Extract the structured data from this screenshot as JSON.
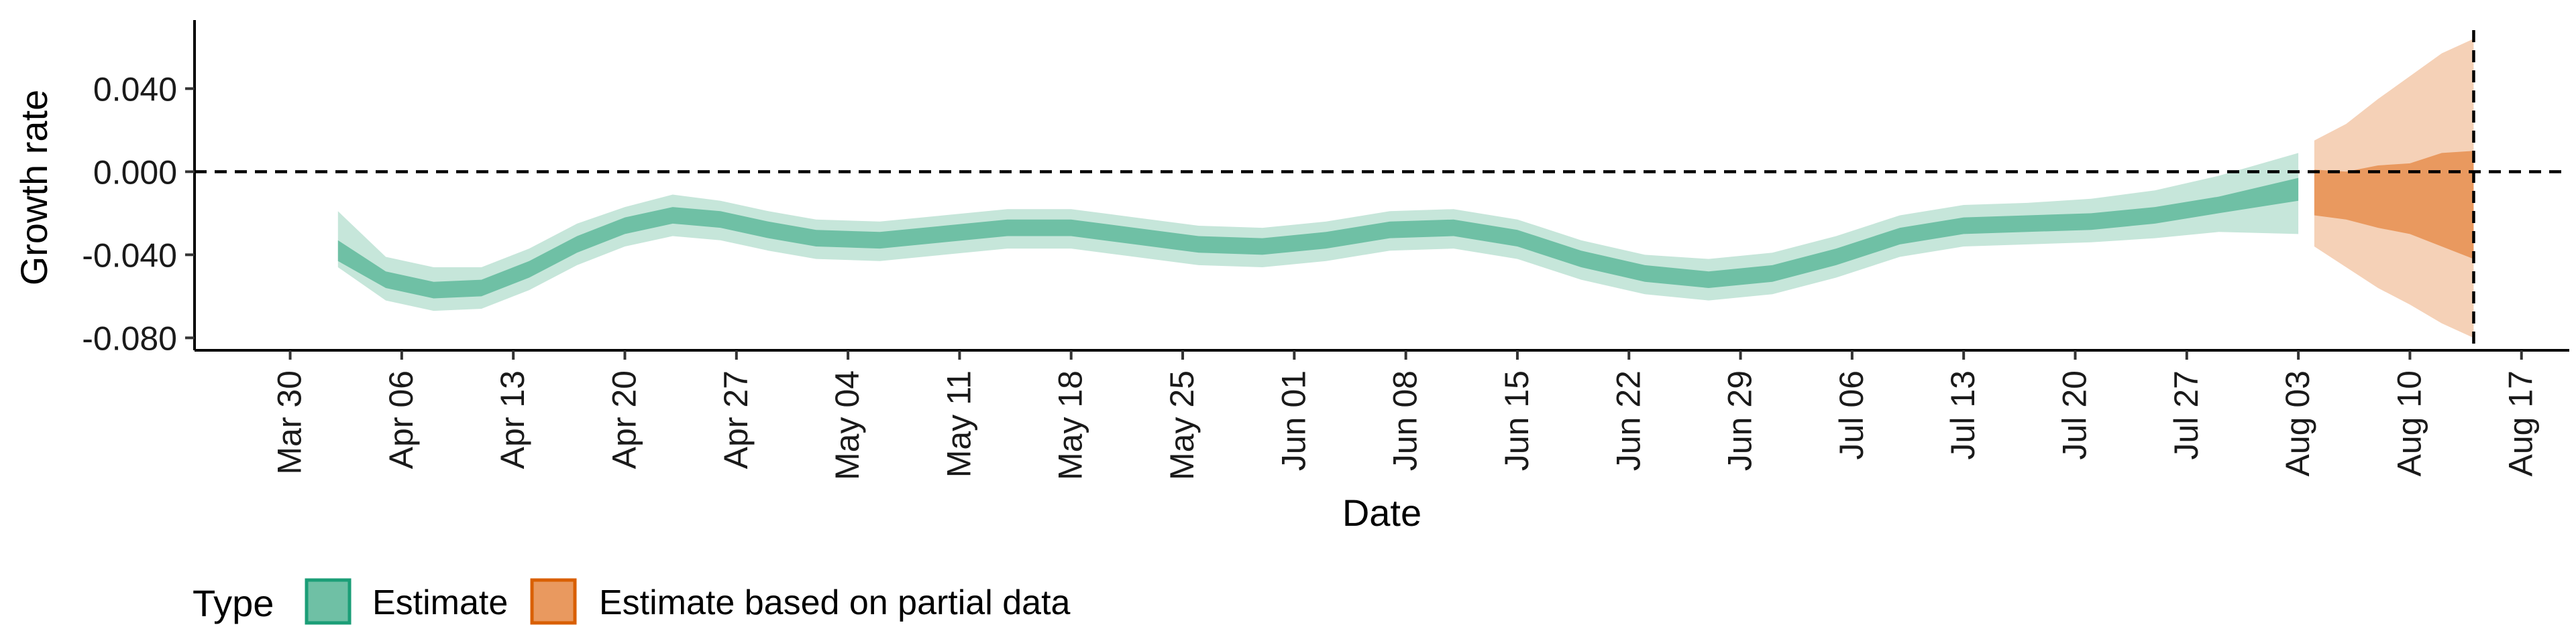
{
  "chart_data": {
    "type": "area",
    "title": "",
    "xlabel": "Date",
    "ylabel": "Growth rate",
    "x_type": "date",
    "xlim": [
      "2020-03-24",
      "2020-08-20"
    ],
    "ylim": [
      -0.086,
      0.073
    ],
    "y_ticks": [
      -0.08,
      -0.04,
      0.0,
      0.04
    ],
    "y_tick_labels": [
      "-0.080",
      "-0.040",
      "0.000",
      "0.040"
    ],
    "x_ticks": [
      "2020-03-30",
      "2020-04-06",
      "2020-04-13",
      "2020-04-20",
      "2020-04-27",
      "2020-05-04",
      "2020-05-11",
      "2020-05-18",
      "2020-05-25",
      "2020-06-01",
      "2020-06-08",
      "2020-06-15",
      "2020-06-22",
      "2020-06-29",
      "2020-07-06",
      "2020-07-13",
      "2020-07-20",
      "2020-07-27",
      "2020-08-03",
      "2020-08-10",
      "2020-08-17"
    ],
    "x_tick_labels": [
      "Mar 30",
      "Apr 06",
      "Apr 13",
      "Apr 20",
      "Apr 27",
      "May 04",
      "May 11",
      "May 18",
      "May 25",
      "Jun 01",
      "Jun 08",
      "Jun 15",
      "Jun 22",
      "Jun 29",
      "Jul 06",
      "Jul 13",
      "Jul 20",
      "Jul 27",
      "Aug 03",
      "Aug 10",
      "Aug 17"
    ],
    "hline_y": 0.0,
    "vline_x": "2020-08-14",
    "grid": false,
    "legend": {
      "title": "Type",
      "position": "bottom-left",
      "entries": [
        "Estimate",
        "Estimate based on partial data"
      ]
    },
    "series": [
      {
        "name": "Estimate",
        "fill_inner": "#6fc0a5",
        "fill_outer": "#c6e6da",
        "border": "#1b9e77",
        "points": [
          {
            "x": "2020-04-02",
            "median": -0.038,
            "lower_50": -0.043,
            "upper_50": -0.033,
            "lower_90": -0.046,
            "upper_90": -0.019
          },
          {
            "x": "2020-04-05",
            "median": -0.052,
            "lower_50": -0.056,
            "upper_50": -0.048,
            "lower_90": -0.062,
            "upper_90": -0.041
          },
          {
            "x": "2020-04-08",
            "median": -0.057,
            "lower_50": -0.061,
            "upper_50": -0.053,
            "lower_90": -0.067,
            "upper_90": -0.046
          },
          {
            "x": "2020-04-11",
            "median": -0.056,
            "lower_50": -0.06,
            "upper_50": -0.052,
            "lower_90": -0.066,
            "upper_90": -0.046
          },
          {
            "x": "2020-04-14",
            "median": -0.047,
            "lower_50": -0.051,
            "upper_50": -0.043,
            "lower_90": -0.057,
            "upper_90": -0.037
          },
          {
            "x": "2020-04-17",
            "median": -0.035,
            "lower_50": -0.039,
            "upper_50": -0.031,
            "lower_90": -0.045,
            "upper_90": -0.025
          },
          {
            "x": "2020-04-20",
            "median": -0.026,
            "lower_50": -0.03,
            "upper_50": -0.022,
            "lower_90": -0.036,
            "upper_90": -0.017
          },
          {
            "x": "2020-04-23",
            "median": -0.021,
            "lower_50": -0.025,
            "upper_50": -0.017,
            "lower_90": -0.031,
            "upper_90": -0.011
          },
          {
            "x": "2020-04-26",
            "median": -0.023,
            "lower_50": -0.027,
            "upper_50": -0.019,
            "lower_90": -0.033,
            "upper_90": -0.014
          },
          {
            "x": "2020-04-29",
            "median": -0.028,
            "lower_50": -0.032,
            "upper_50": -0.024,
            "lower_90": -0.038,
            "upper_90": -0.019
          },
          {
            "x": "2020-05-02",
            "median": -0.032,
            "lower_50": -0.036,
            "upper_50": -0.028,
            "lower_90": -0.042,
            "upper_90": -0.023
          },
          {
            "x": "2020-05-06",
            "median": -0.033,
            "lower_50": -0.037,
            "upper_50": -0.029,
            "lower_90": -0.043,
            "upper_90": -0.024
          },
          {
            "x": "2020-05-10",
            "median": -0.03,
            "lower_50": -0.034,
            "upper_50": -0.026,
            "lower_90": -0.04,
            "upper_90": -0.021
          },
          {
            "x": "2020-05-14",
            "median": -0.027,
            "lower_50": -0.031,
            "upper_50": -0.023,
            "lower_90": -0.037,
            "upper_90": -0.018
          },
          {
            "x": "2020-05-18",
            "median": -0.027,
            "lower_50": -0.031,
            "upper_50": -0.023,
            "lower_90": -0.037,
            "upper_90": -0.018
          },
          {
            "x": "2020-05-22",
            "median": -0.031,
            "lower_50": -0.035,
            "upper_50": -0.027,
            "lower_90": -0.041,
            "upper_90": -0.022
          },
          {
            "x": "2020-05-26",
            "median": -0.035,
            "lower_50": -0.039,
            "upper_50": -0.031,
            "lower_90": -0.045,
            "upper_90": -0.026
          },
          {
            "x": "2020-05-30",
            "median": -0.036,
            "lower_50": -0.04,
            "upper_50": -0.032,
            "lower_90": -0.046,
            "upper_90": -0.027
          },
          {
            "x": "2020-06-03",
            "median": -0.033,
            "lower_50": -0.037,
            "upper_50": -0.029,
            "lower_90": -0.043,
            "upper_90": -0.024
          },
          {
            "x": "2020-06-07",
            "median": -0.028,
            "lower_50": -0.032,
            "upper_50": -0.024,
            "lower_90": -0.038,
            "upper_90": -0.019
          },
          {
            "x": "2020-06-11",
            "median": -0.027,
            "lower_50": -0.031,
            "upper_50": -0.023,
            "lower_90": -0.037,
            "upper_90": -0.018
          },
          {
            "x": "2020-06-15",
            "median": -0.032,
            "lower_50": -0.036,
            "upper_50": -0.028,
            "lower_90": -0.042,
            "upper_90": -0.023
          },
          {
            "x": "2020-06-19",
            "median": -0.042,
            "lower_50": -0.046,
            "upper_50": -0.038,
            "lower_90": -0.052,
            "upper_90": -0.033
          },
          {
            "x": "2020-06-23",
            "median": -0.049,
            "lower_50": -0.053,
            "upper_50": -0.045,
            "lower_90": -0.059,
            "upper_90": -0.04
          },
          {
            "x": "2020-06-27",
            "median": -0.052,
            "lower_50": -0.056,
            "upper_50": -0.048,
            "lower_90": -0.062,
            "upper_90": -0.042
          },
          {
            "x": "2020-07-01",
            "median": -0.049,
            "lower_50": -0.053,
            "upper_50": -0.045,
            "lower_90": -0.059,
            "upper_90": -0.039
          },
          {
            "x": "2020-07-05",
            "median": -0.041,
            "lower_50": -0.045,
            "upper_50": -0.037,
            "lower_90": -0.051,
            "upper_90": -0.031
          },
          {
            "x": "2020-07-09",
            "median": -0.031,
            "lower_50": -0.035,
            "upper_50": -0.027,
            "lower_90": -0.041,
            "upper_90": -0.021
          },
          {
            "x": "2020-07-13",
            "median": -0.026,
            "lower_50": -0.03,
            "upper_50": -0.022,
            "lower_90": -0.036,
            "upper_90": -0.016
          },
          {
            "x": "2020-07-17",
            "median": -0.025,
            "lower_50": -0.029,
            "upper_50": -0.021,
            "lower_90": -0.035,
            "upper_90": -0.015
          },
          {
            "x": "2020-07-21",
            "median": -0.024,
            "lower_50": -0.028,
            "upper_50": -0.02,
            "lower_90": -0.034,
            "upper_90": -0.013
          },
          {
            "x": "2020-07-25",
            "median": -0.021,
            "lower_50": -0.025,
            "upper_50": -0.017,
            "lower_90": -0.032,
            "upper_90": -0.009
          },
          {
            "x": "2020-07-29",
            "median": -0.016,
            "lower_50": -0.02,
            "upper_50": -0.012,
            "lower_90": -0.029,
            "upper_90": -0.002
          },
          {
            "x": "2020-08-03",
            "median": -0.008,
            "lower_50": -0.014,
            "upper_50": -0.003,
            "lower_90": -0.03,
            "upper_90": 0.009
          }
        ]
      },
      {
        "name": "Estimate based on partial data",
        "fill_inner": "#e9995f",
        "fill_outer": "#f5d1b7",
        "border": "#d95f02",
        "points": [
          {
            "x": "2020-08-04",
            "median": -0.01,
            "lower_50": -0.021,
            "upper_50": 0.001,
            "lower_90": -0.036,
            "upper_90": 0.015
          },
          {
            "x": "2020-08-06",
            "median": -0.012,
            "lower_50": -0.023,
            "upper_50": 0.0,
            "lower_90": -0.046,
            "upper_90": 0.023
          },
          {
            "x": "2020-08-08",
            "median": -0.013,
            "lower_50": -0.027,
            "upper_50": 0.003,
            "lower_90": -0.056,
            "upper_90": 0.035
          },
          {
            "x": "2020-08-10",
            "median": -0.014,
            "lower_50": -0.03,
            "upper_50": 0.004,
            "lower_90": -0.064,
            "upper_90": 0.046
          },
          {
            "x": "2020-08-12",
            "median": -0.016,
            "lower_50": -0.036,
            "upper_50": 0.009,
            "lower_90": -0.073,
            "upper_90": 0.057
          },
          {
            "x": "2020-08-14",
            "median": -0.018,
            "lower_50": -0.042,
            "upper_50": 0.01,
            "lower_90": -0.08,
            "upper_90": 0.064
          }
        ]
      }
    ]
  }
}
